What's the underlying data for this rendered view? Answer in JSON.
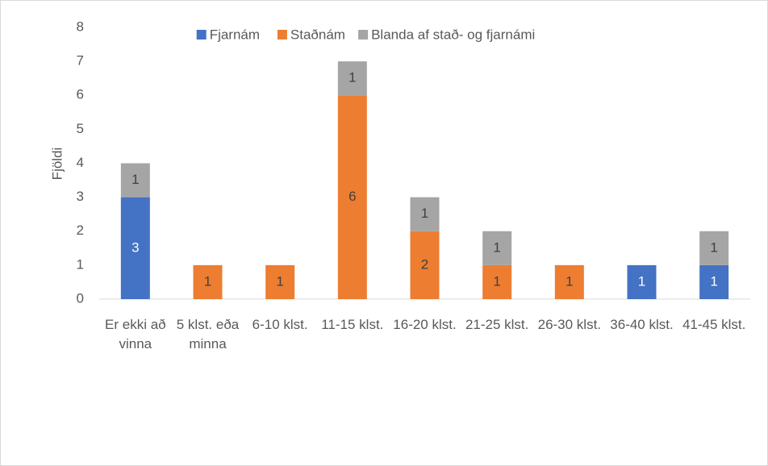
{
  "chart_data": {
    "type": "stacked_bar",
    "y_label": "Fjöldi",
    "categories": [
      "Er ekki að vinna",
      "5 klst. eða minna",
      "6-10 klst.",
      "11-15 klst.",
      "16-20 klst.",
      "21-25 klst.",
      "26-30 klst.",
      "36-40 klst.",
      "41-45 klst."
    ],
    "series": [
      {
        "name": "Fjarnám",
        "color": "#4472c4",
        "values": [
          3,
          0,
          0,
          0,
          0,
          0,
          0,
          1,
          1
        ]
      },
      {
        "name": "Staðnám",
        "color": "#ed7d31",
        "values": [
          0,
          1,
          1,
          6,
          2,
          1,
          1,
          0,
          0
        ]
      },
      {
        "name": "Blanda af stað- og fjarnámi",
        "color": "#a5a5a5",
        "values": [
          1,
          0,
          0,
          1,
          1,
          1,
          0,
          0,
          1
        ]
      }
    ],
    "ylim": [
      0,
      8
    ],
    "yticks": [
      0,
      1,
      2,
      3,
      4,
      5,
      6,
      7,
      8
    ],
    "grid": false,
    "legend": "top"
  }
}
